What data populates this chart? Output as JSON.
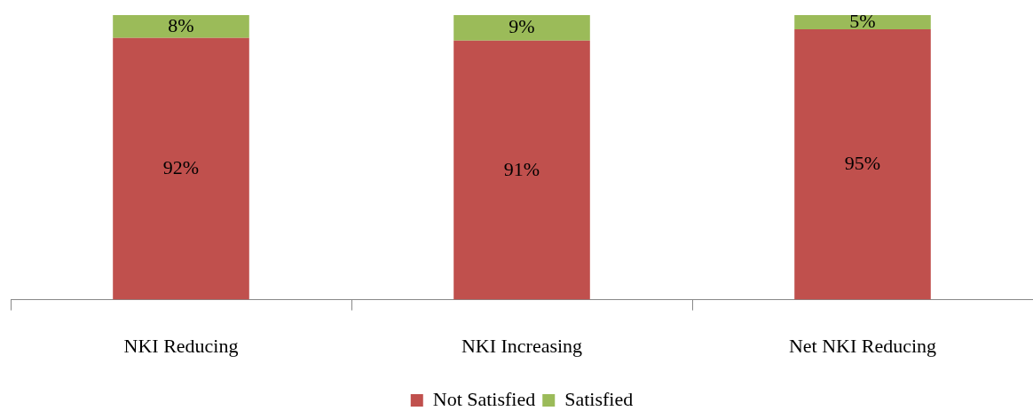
{
  "chart_data": {
    "type": "bar",
    "stacked": true,
    "categories": [
      "NKI Reducing",
      "NKI Increasing",
      "Net NKI Reducing"
    ],
    "series": [
      {
        "name": "Not Satisfied",
        "color": "#c0504d",
        "values": [
          92,
          91,
          95
        ],
        "value_labels": [
          "92%",
          "91%",
          "95%"
        ]
      },
      {
        "name": "Satisfied",
        "color": "#9bbb59",
        "values": [
          8,
          9,
          5
        ],
        "value_labels": [
          "8%",
          "9%",
          "5%"
        ]
      }
    ],
    "legend": "bottom",
    "grid": false
  }
}
